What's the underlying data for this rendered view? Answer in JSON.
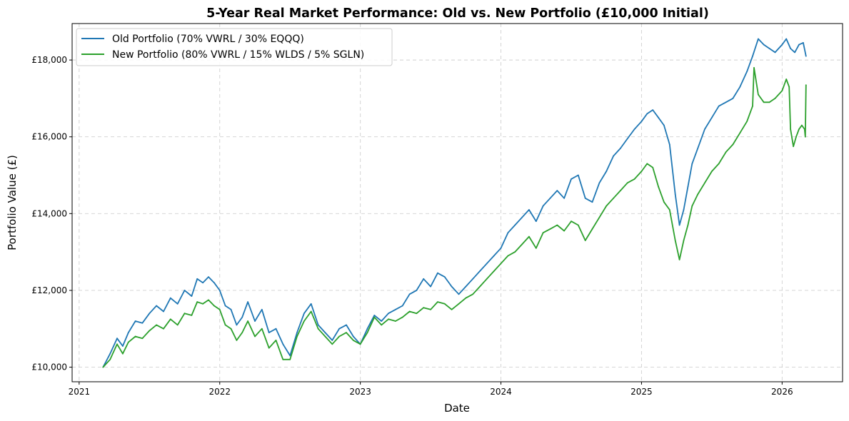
{
  "chart_data": {
    "type": "line",
    "title": "5-Year Real Market Performance: Old vs. New Portfolio (£10,000 Initial)",
    "xlabel": "Date",
    "ylabel": "Portfolio Value (£)",
    "xlim": [
      2020.95,
      2026.43
    ],
    "ylim": [
      9620,
      18950
    ],
    "x_ticks": [
      2021,
      2022,
      2023,
      2024,
      2025,
      2026
    ],
    "x_tick_labels": [
      "2021",
      "2022",
      "2023",
      "2024",
      "2025",
      "2026"
    ],
    "y_ticks": [
      10000,
      12000,
      14000,
      16000,
      18000
    ],
    "y_tick_labels": [
      "£10,000",
      "£12,000",
      "£14,000",
      "£16,000",
      "£18,000"
    ],
    "grid": true,
    "legend_position": "upper-left",
    "series": [
      {
        "name": "Old Portfolio (70% VWRL / 30% EQQQ)",
        "color": "#1f77b4",
        "x": [
          2021.17,
          2021.22,
          2021.27,
          2021.31,
          2021.35,
          2021.4,
          2021.45,
          2021.5,
          2021.55,
          2021.6,
          2021.65,
          2021.7,
          2021.75,
          2021.8,
          2021.84,
          2021.88,
          2021.92,
          2021.96,
          2022.0,
          2022.04,
          2022.08,
          2022.12,
          2022.16,
          2022.2,
          2022.25,
          2022.3,
          2022.35,
          2022.4,
          2022.45,
          2022.5,
          2022.55,
          2022.6,
          2022.65,
          2022.7,
          2022.75,
          2022.8,
          2022.85,
          2022.9,
          2022.95,
          2023.0,
          2023.05,
          2023.1,
          2023.15,
          2023.2,
          2023.25,
          2023.3,
          2023.35,
          2023.4,
          2023.45,
          2023.5,
          2023.55,
          2023.6,
          2023.65,
          2023.7,
          2023.75,
          2023.8,
          2023.85,
          2023.9,
          2023.95,
          2024.0,
          2024.05,
          2024.1,
          2024.15,
          2024.2,
          2024.25,
          2024.3,
          2024.35,
          2024.4,
          2024.45,
          2024.5,
          2024.55,
          2024.6,
          2024.65,
          2024.7,
          2024.75,
          2024.8,
          2024.85,
          2024.9,
          2024.95,
          2025.0,
          2025.04,
          2025.08,
          2025.12,
          2025.16,
          2025.2,
          2025.24,
          2025.27,
          2025.3,
          2025.33,
          2025.36,
          2025.4,
          2025.45,
          2025.5,
          2025.55,
          2025.6,
          2025.65,
          2025.7,
          2025.75,
          2025.79,
          2025.83,
          2025.87,
          2025.91,
          2025.95,
          2026.0,
          2026.03,
          2026.06,
          2026.09,
          2026.12,
          2026.15,
          2026.17
        ],
        "y": [
          10000,
          10350,
          10750,
          10550,
          10900,
          11200,
          11150,
          11400,
          11600,
          11450,
          11800,
          11650,
          12000,
          11850,
          12300,
          12200,
          12350,
          12200,
          12000,
          11600,
          11500,
          11100,
          11300,
          11700,
          11200,
          11500,
          10900,
          11000,
          10600,
          10300,
          10900,
          11400,
          11650,
          11100,
          10900,
          10700,
          11000,
          11100,
          10800,
          10600,
          11000,
          11350,
          11200,
          11400,
          11500,
          11600,
          11900,
          12000,
          12300,
          12100,
          12450,
          12350,
          12100,
          11900,
          12100,
          12300,
          12500,
          12700,
          12900,
          13100,
          13500,
          13700,
          13900,
          14100,
          13800,
          14200,
          14400,
          14600,
          14400,
          14900,
          15000,
          14400,
          14300,
          14800,
          15100,
          15500,
          15700,
          15950,
          16200,
          16400,
          16600,
          16700,
          16500,
          16300,
          15800,
          14500,
          13700,
          14100,
          14700,
          15300,
          15700,
          16200,
          16500,
          16800,
          16900,
          17000,
          17300,
          17700,
          18100,
          18550,
          18400,
          18300,
          18200,
          18400,
          18550,
          18300,
          18200,
          18400,
          18450,
          18100
        ]
      },
      {
        "name": "New Portfolio (80% VWRL / 15% WLDS / 5% SGLN)",
        "color": "#2ca02c",
        "x": [
          2021.17,
          2021.22,
          2021.27,
          2021.31,
          2021.35,
          2021.4,
          2021.45,
          2021.5,
          2021.55,
          2021.6,
          2021.65,
          2021.7,
          2021.75,
          2021.8,
          2021.84,
          2021.88,
          2021.92,
          2021.96,
          2022.0,
          2022.04,
          2022.08,
          2022.12,
          2022.16,
          2022.2,
          2022.25,
          2022.3,
          2022.35,
          2022.4,
          2022.45,
          2022.5,
          2022.55,
          2022.6,
          2022.65,
          2022.7,
          2022.75,
          2022.8,
          2022.85,
          2022.9,
          2022.95,
          2023.0,
          2023.05,
          2023.1,
          2023.15,
          2023.2,
          2023.25,
          2023.3,
          2023.35,
          2023.4,
          2023.45,
          2023.5,
          2023.55,
          2023.6,
          2023.65,
          2023.7,
          2023.75,
          2023.8,
          2023.85,
          2023.9,
          2023.95,
          2024.0,
          2024.05,
          2024.1,
          2024.15,
          2024.2,
          2024.25,
          2024.3,
          2024.35,
          2024.4,
          2024.45,
          2024.5,
          2024.55,
          2024.6,
          2024.65,
          2024.7,
          2024.75,
          2024.8,
          2024.85,
          2024.9,
          2024.95,
          2025.0,
          2025.04,
          2025.08,
          2025.12,
          2025.16,
          2025.2,
          2025.24,
          2025.27,
          2025.3,
          2025.33,
          2025.36,
          2025.4,
          2025.45,
          2025.5,
          2025.55,
          2025.6,
          2025.65,
          2025.7,
          2025.75,
          2025.79,
          2025.8,
          2025.83,
          2025.87,
          2025.91,
          2025.95,
          2026.0,
          2026.03,
          2026.05,
          2026.06,
          2026.08,
          2026.1,
          2026.12,
          2026.14,
          2026.16,
          2026.165,
          2026.17
        ],
        "y": [
          10000,
          10200,
          10600,
          10350,
          10650,
          10800,
          10750,
          10950,
          11100,
          11000,
          11250,
          11100,
          11400,
          11350,
          11700,
          11650,
          11750,
          11600,
          11500,
          11100,
          11000,
          10700,
          10900,
          11200,
          10800,
          11000,
          10500,
          10700,
          10200,
          10200,
          10800,
          11200,
          11450,
          11000,
          10800,
          10600,
          10800,
          10900,
          10700,
          10600,
          10900,
          11300,
          11100,
          11250,
          11200,
          11300,
          11450,
          11400,
          11550,
          11500,
          11700,
          11650,
          11500,
          11650,
          11800,
          11900,
          12100,
          12300,
          12500,
          12700,
          12900,
          13000,
          13200,
          13400,
          13100,
          13500,
          13600,
          13700,
          13550,
          13800,
          13700,
          13300,
          13600,
          13900,
          14200,
          14400,
          14600,
          14800,
          14900,
          15100,
          15300,
          15200,
          14700,
          14300,
          14100,
          13300,
          12800,
          13300,
          13700,
          14200,
          14500,
          14800,
          15100,
          15300,
          15600,
          15800,
          16100,
          16400,
          16800,
          17800,
          17100,
          16900,
          16900,
          17000,
          17200,
          17500,
          17300,
          16200,
          15750,
          16000,
          16200,
          16300,
          16200,
          16000,
          17350
        ]
      }
    ]
  }
}
